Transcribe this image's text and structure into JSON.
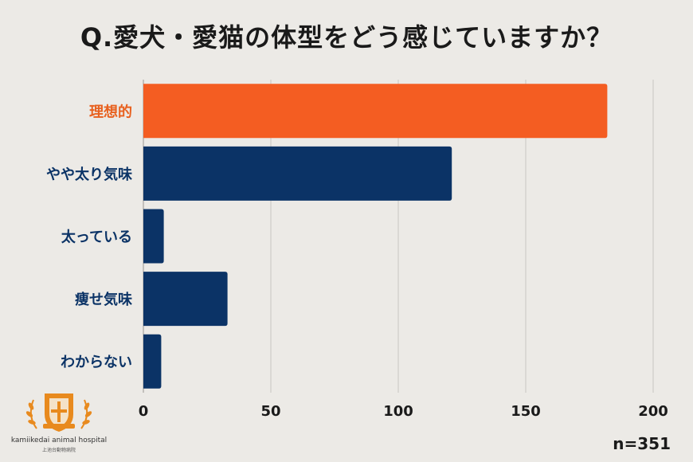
{
  "chart_data": {
    "type": "bar",
    "orientation": "horizontal",
    "title": "Q.愛犬・愛猫の体型をどう感じていますか？",
    "categories": [
      "理想的",
      "やや太り気味",
      "太っている",
      "痩せ気味",
      "わからない"
    ],
    "values": [
      182,
      121,
      8,
      33,
      7
    ],
    "xlim": [
      0,
      200
    ],
    "xticks": [
      0,
      50,
      100,
      150,
      200
    ],
    "grid": true,
    "highlight_index": 0,
    "colors": {
      "highlight": "#f45d22",
      "default": "#0b3366",
      "highlight_label": "#e8611f",
      "default_label": "#0b3366"
    },
    "note": "n=351"
  },
  "logo": {
    "name": "kamiikedai animal hospital",
    "sub": "上池台動物病院",
    "color": "#e88a1e"
  }
}
